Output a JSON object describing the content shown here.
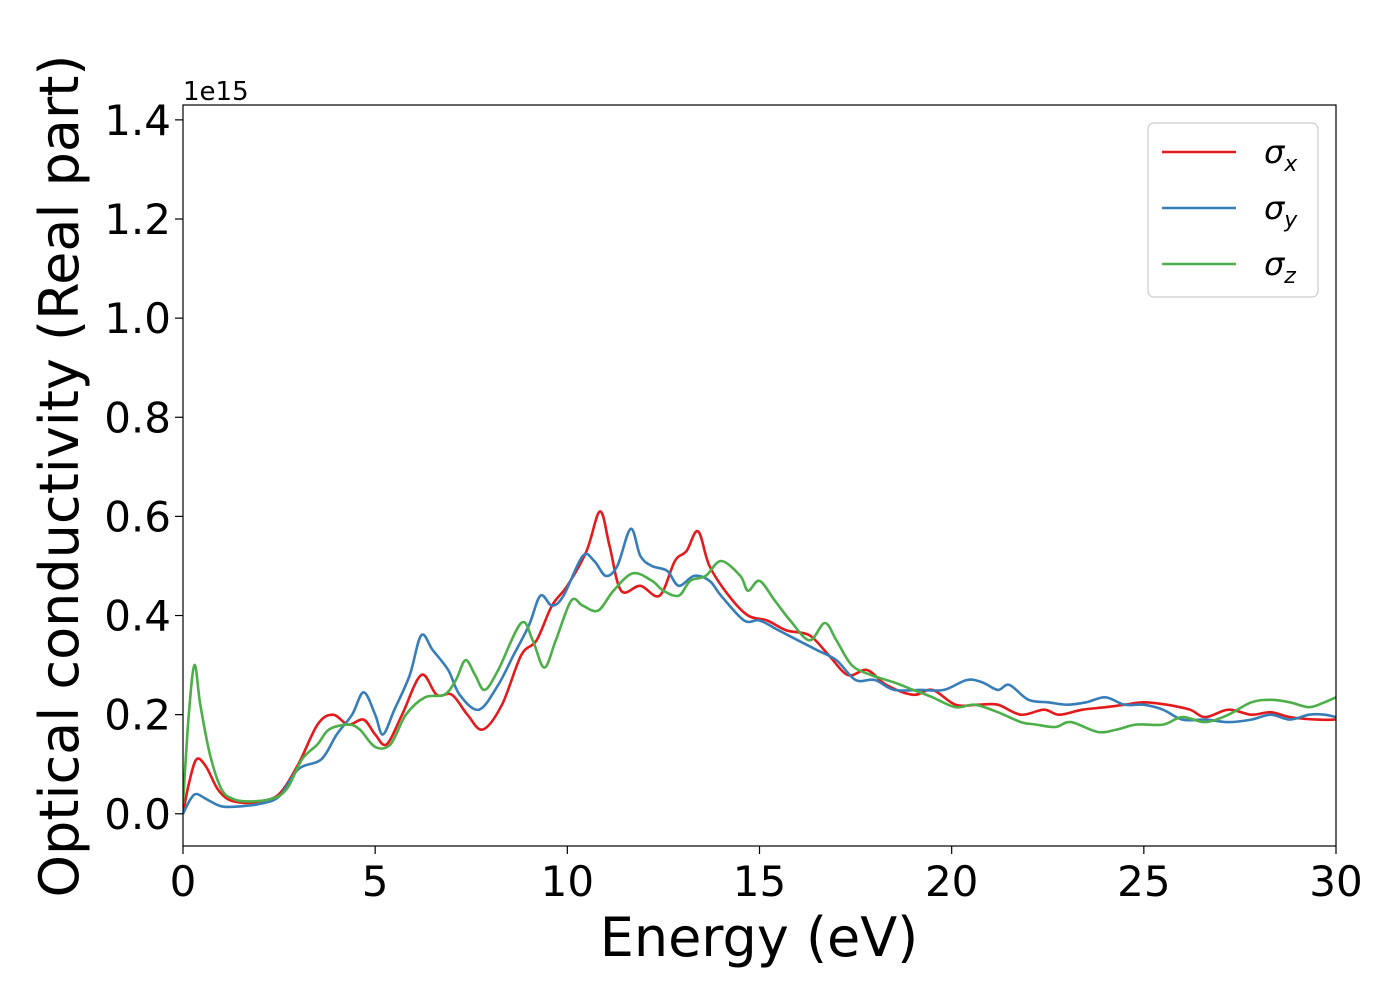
{
  "chart_data": {
    "type": "line",
    "title": "",
    "xlabel": "Energy (eV)",
    "ylabel": "Optical conductivity (Real part)",
    "y_offset_label": "1e15",
    "xlim": [
      0,
      30
    ],
    "ylim": [
      -0.065,
      1.43
    ],
    "grid": false,
    "legend_position": "top-right",
    "x_ticks": [
      0,
      5,
      10,
      15,
      20,
      25,
      30
    ],
    "x_tick_labels": [
      "0",
      "5",
      "10",
      "15",
      "20",
      "25",
      "30"
    ],
    "y_ticks": [
      0.0,
      0.2,
      0.4,
      0.6,
      0.8,
      1.0,
      1.2,
      1.4
    ],
    "y_tick_labels": [
      "0.0",
      "0.2",
      "0.4",
      "0.6",
      "0.8",
      "1.0",
      "1.2",
      "1.4"
    ],
    "series": [
      {
        "name": "σ",
        "subscript": "x",
        "color": "#e41a1c",
        "points": [
          [
            0,
            0
          ],
          [
            0.15,
            0.06
          ],
          [
            0.35,
            0.11
          ],
          [
            0.6,
            0.095
          ],
          [
            0.9,
            0.05
          ],
          [
            1.2,
            0.028
          ],
          [
            1.6,
            0.022
          ],
          [
            2.0,
            0.025
          ],
          [
            2.5,
            0.04
          ],
          [
            3.0,
            0.1
          ],
          [
            3.5,
            0.18
          ],
          [
            3.9,
            0.2
          ],
          [
            4.3,
            0.18
          ],
          [
            4.7,
            0.19
          ],
          [
            5.0,
            0.16
          ],
          [
            5.3,
            0.14
          ],
          [
            5.7,
            0.2
          ],
          [
            6.2,
            0.28
          ],
          [
            6.6,
            0.24
          ],
          [
            7.0,
            0.24
          ],
          [
            7.4,
            0.2
          ],
          [
            7.8,
            0.17
          ],
          [
            8.3,
            0.22
          ],
          [
            8.8,
            0.32
          ],
          [
            9.2,
            0.35
          ],
          [
            9.6,
            0.42
          ],
          [
            10.0,
            0.46
          ],
          [
            10.5,
            0.53
          ],
          [
            10.85,
            0.61
          ],
          [
            11.1,
            0.54
          ],
          [
            11.4,
            0.45
          ],
          [
            11.9,
            0.46
          ],
          [
            12.4,
            0.44
          ],
          [
            12.8,
            0.51
          ],
          [
            13.1,
            0.53
          ],
          [
            13.4,
            0.57
          ],
          [
            13.7,
            0.5
          ],
          [
            14.2,
            0.44
          ],
          [
            14.7,
            0.4
          ],
          [
            15.2,
            0.39
          ],
          [
            15.7,
            0.37
          ],
          [
            16.3,
            0.36
          ],
          [
            16.8,
            0.32
          ],
          [
            17.3,
            0.28
          ],
          [
            17.8,
            0.29
          ],
          [
            18.3,
            0.26
          ],
          [
            19.0,
            0.24
          ],
          [
            19.5,
            0.25
          ],
          [
            20.1,
            0.22
          ],
          [
            20.7,
            0.22
          ],
          [
            21.2,
            0.22
          ],
          [
            21.8,
            0.2
          ],
          [
            22.4,
            0.21
          ],
          [
            22.8,
            0.2
          ],
          [
            23.4,
            0.21
          ],
          [
            24.0,
            0.215
          ],
          [
            24.5,
            0.22
          ],
          [
            25.0,
            0.225
          ],
          [
            25.6,
            0.22
          ],
          [
            26.2,
            0.21
          ],
          [
            26.6,
            0.195
          ],
          [
            27.2,
            0.21
          ],
          [
            27.8,
            0.2
          ],
          [
            28.3,
            0.205
          ],
          [
            28.8,
            0.195
          ],
          [
            29.5,
            0.19
          ],
          [
            30.0,
            0.19
          ]
        ]
      },
      {
        "name": "σ",
        "subscript": "y",
        "color": "#377eb8",
        "points": [
          [
            0,
            0
          ],
          [
            0.2,
            0.03
          ],
          [
            0.35,
            0.04
          ],
          [
            0.6,
            0.03
          ],
          [
            1.0,
            0.015
          ],
          [
            1.5,
            0.015
          ],
          [
            2.0,
            0.02
          ],
          [
            2.5,
            0.035
          ],
          [
            3.0,
            0.09
          ],
          [
            3.6,
            0.11
          ],
          [
            4.0,
            0.16
          ],
          [
            4.4,
            0.2
          ],
          [
            4.7,
            0.245
          ],
          [
            5.0,
            0.2
          ],
          [
            5.2,
            0.16
          ],
          [
            5.5,
            0.21
          ],
          [
            5.9,
            0.28
          ],
          [
            6.2,
            0.36
          ],
          [
            6.5,
            0.33
          ],
          [
            6.9,
            0.29
          ],
          [
            7.2,
            0.24
          ],
          [
            7.7,
            0.21
          ],
          [
            8.2,
            0.26
          ],
          [
            8.6,
            0.32
          ],
          [
            9.0,
            0.38
          ],
          [
            9.3,
            0.44
          ],
          [
            9.6,
            0.42
          ],
          [
            9.9,
            0.44
          ],
          [
            10.4,
            0.52
          ],
          [
            10.7,
            0.51
          ],
          [
            11.0,
            0.48
          ],
          [
            11.3,
            0.5
          ],
          [
            11.65,
            0.575
          ],
          [
            11.9,
            0.52
          ],
          [
            12.2,
            0.5
          ],
          [
            12.6,
            0.49
          ],
          [
            12.9,
            0.46
          ],
          [
            13.3,
            0.48
          ],
          [
            13.7,
            0.47
          ],
          [
            14.0,
            0.44
          ],
          [
            14.6,
            0.39
          ],
          [
            15.0,
            0.39
          ],
          [
            15.5,
            0.37
          ],
          [
            16.0,
            0.35
          ],
          [
            16.5,
            0.33
          ],
          [
            17.0,
            0.31
          ],
          [
            17.5,
            0.27
          ],
          [
            18.0,
            0.27
          ],
          [
            18.5,
            0.25
          ],
          [
            19.2,
            0.25
          ],
          [
            19.8,
            0.25
          ],
          [
            20.4,
            0.27
          ],
          [
            20.8,
            0.265
          ],
          [
            21.2,
            0.25
          ],
          [
            21.5,
            0.26
          ],
          [
            22.0,
            0.23
          ],
          [
            22.5,
            0.225
          ],
          [
            23.0,
            0.22
          ],
          [
            23.5,
            0.225
          ],
          [
            24.0,
            0.235
          ],
          [
            24.5,
            0.22
          ],
          [
            25.0,
            0.22
          ],
          [
            25.5,
            0.21
          ],
          [
            26.0,
            0.19
          ],
          [
            26.6,
            0.19
          ],
          [
            27.2,
            0.185
          ],
          [
            27.8,
            0.19
          ],
          [
            28.3,
            0.2
          ],
          [
            28.8,
            0.19
          ],
          [
            29.3,
            0.2
          ],
          [
            29.7,
            0.2
          ],
          [
            30.0,
            0.195
          ]
        ]
      },
      {
        "name": "σ",
        "subscript": "z",
        "color": "#4daf4a",
        "points": [
          [
            0,
            0.02
          ],
          [
            0.15,
            0.2
          ],
          [
            0.3,
            0.3
          ],
          [
            0.45,
            0.22
          ],
          [
            0.7,
            0.12
          ],
          [
            1.0,
            0.05
          ],
          [
            1.3,
            0.03
          ],
          [
            1.7,
            0.025
          ],
          [
            2.3,
            0.03
          ],
          [
            2.7,
            0.05
          ],
          [
            3.1,
            0.11
          ],
          [
            3.5,
            0.14
          ],
          [
            3.8,
            0.17
          ],
          [
            4.3,
            0.18
          ],
          [
            4.6,
            0.17
          ],
          [
            5.0,
            0.135
          ],
          [
            5.4,
            0.14
          ],
          [
            5.8,
            0.2
          ],
          [
            6.3,
            0.235
          ],
          [
            6.8,
            0.24
          ],
          [
            7.1,
            0.27
          ],
          [
            7.35,
            0.31
          ],
          [
            7.6,
            0.28
          ],
          [
            7.85,
            0.25
          ],
          [
            8.2,
            0.29
          ],
          [
            8.8,
            0.385
          ],
          [
            9.1,
            0.35
          ],
          [
            9.4,
            0.295
          ],
          [
            9.7,
            0.35
          ],
          [
            10.1,
            0.43
          ],
          [
            10.4,
            0.42
          ],
          [
            10.8,
            0.41
          ],
          [
            11.2,
            0.45
          ],
          [
            11.7,
            0.485
          ],
          [
            12.2,
            0.47
          ],
          [
            12.5,
            0.45
          ],
          [
            12.9,
            0.44
          ],
          [
            13.2,
            0.47
          ],
          [
            13.6,
            0.48
          ],
          [
            14.0,
            0.51
          ],
          [
            14.5,
            0.48
          ],
          [
            14.7,
            0.45
          ],
          [
            15.0,
            0.47
          ],
          [
            15.4,
            0.43
          ],
          [
            15.8,
            0.39
          ],
          [
            16.3,
            0.35
          ],
          [
            16.7,
            0.385
          ],
          [
            17.0,
            0.35
          ],
          [
            17.4,
            0.3
          ],
          [
            17.9,
            0.28
          ],
          [
            18.5,
            0.265
          ],
          [
            19.0,
            0.25
          ],
          [
            19.5,
            0.235
          ],
          [
            20.1,
            0.215
          ],
          [
            20.6,
            0.22
          ],
          [
            21.2,
            0.205
          ],
          [
            21.8,
            0.185
          ],
          [
            22.2,
            0.18
          ],
          [
            22.7,
            0.175
          ],
          [
            23.1,
            0.185
          ],
          [
            23.8,
            0.165
          ],
          [
            24.3,
            0.17
          ],
          [
            24.8,
            0.18
          ],
          [
            25.5,
            0.18
          ],
          [
            26.0,
            0.195
          ],
          [
            26.6,
            0.185
          ],
          [
            27.2,
            0.2
          ],
          [
            27.8,
            0.225
          ],
          [
            28.3,
            0.23
          ],
          [
            28.8,
            0.225
          ],
          [
            29.3,
            0.215
          ],
          [
            29.7,
            0.225
          ],
          [
            30.0,
            0.235
          ]
        ]
      }
    ]
  }
}
